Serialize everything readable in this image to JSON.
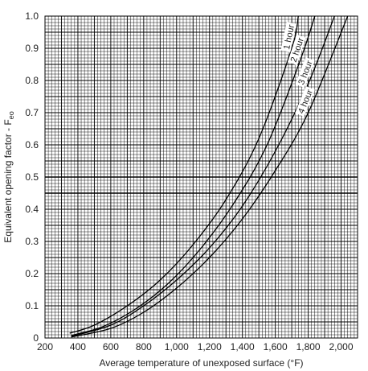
{
  "chart_data": {
    "type": "line",
    "title": "",
    "xlabel": "Average temperature of unexposed surface (°F)",
    "ylabel": "Equivalent opening factor - F",
    "ylabel_subscript": "eo",
    "xlim": [
      200,
      2100
    ],
    "ylim": [
      0,
      1.0
    ],
    "x_ticks": [
      200,
      400,
      600,
      800,
      1000,
      1200,
      1400,
      1600,
      1800,
      2000
    ],
    "x_tick_labels": [
      "200",
      "400",
      "600",
      "800",
      "1,000",
      "1,200",
      "1,400",
      "1,600",
      "1,800",
      "2,000"
    ],
    "y_ticks": [
      0,
      0.1,
      0.2,
      0.3,
      0.4,
      0.5,
      0.6,
      0.7,
      0.8,
      0.9,
      1.0
    ],
    "y_tick_labels": [
      "0",
      "0.1",
      "0.2",
      "0.3",
      "0.4",
      "0.5",
      "0.6",
      "0.7",
      "0.8",
      "0.9",
      "1.0"
    ],
    "grid": true,
    "series": [
      {
        "name": "1 hour",
        "x": [
          350,
          500,
          700,
          900,
          1100,
          1300,
          1500,
          1700,
          1740
        ],
        "y": [
          0.015,
          0.04,
          0.1,
          0.18,
          0.29,
          0.43,
          0.62,
          0.9,
          1.0
        ]
      },
      {
        "name": "2 hour",
        "x": [
          360,
          550,
          750,
          950,
          1150,
          1350,
          1550,
          1750,
          1840
        ],
        "y": [
          0.008,
          0.035,
          0.09,
          0.17,
          0.28,
          0.42,
          0.6,
          0.86,
          1.0
        ]
      },
      {
        "name": "3 hour",
        "x": [
          360,
          600,
          800,
          1000,
          1200,
          1400,
          1600,
          1800,
          1960
        ],
        "y": [
          0.005,
          0.04,
          0.1,
          0.18,
          0.28,
          0.41,
          0.58,
          0.79,
          1.0
        ]
      },
      {
        "name": "4 hour",
        "x": [
          360,
          600,
          800,
          1000,
          1200,
          1400,
          1600,
          1800,
          2040
        ],
        "y": [
          0.003,
          0.03,
          0.08,
          0.155,
          0.25,
          0.37,
          0.52,
          0.7,
          1.0
        ]
      }
    ]
  }
}
